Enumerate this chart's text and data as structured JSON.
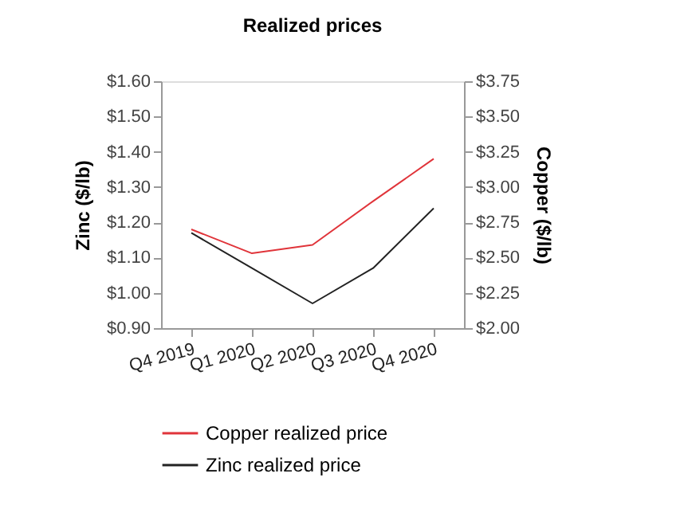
{
  "chart_data": {
    "type": "line",
    "title": "Realized prices",
    "ylabel": "Zinc ($/lb)",
    "y2label": "Copper ($/lb)",
    "categories": [
      "Q4 2019",
      "Q1 2020",
      "Q2 2020",
      "Q3 2020",
      "Q4 2020"
    ],
    "series": [
      {
        "name": "Copper realized price",
        "color": "#e0343a",
        "axis": "y2",
        "values": [
          2.7,
          2.53,
          2.59,
          2.9,
          3.2
        ]
      },
      {
        "name": "Zinc realized price",
        "color": "#222222",
        "values": [
          1.17,
          1.07,
          0.97,
          1.07,
          1.24
        ]
      }
    ],
    "ylim": [
      0.9,
      1.6
    ],
    "yticks": [
      {
        "value": 0.9,
        "label": "$0.90"
      },
      {
        "value": 1.0,
        "label": "$1.00"
      },
      {
        "value": 1.1,
        "label": "$1.10"
      },
      {
        "value": 1.2,
        "label": "$1.20"
      },
      {
        "value": 1.3,
        "label": "$1.30"
      },
      {
        "value": 1.4,
        "label": "$1.40"
      },
      {
        "value": 1.5,
        "label": "$1.50"
      },
      {
        "value": 1.6,
        "label": "$1.60"
      }
    ],
    "y2lim": [
      2.0,
      3.75
    ],
    "y2ticks": [
      {
        "value": 2.0,
        "label": "$2.00"
      },
      {
        "value": 2.25,
        "label": "$2.25"
      },
      {
        "value": 2.5,
        "label": "$2.50"
      },
      {
        "value": 2.75,
        "label": "$2.75"
      },
      {
        "value": 3.0,
        "label": "$3.00"
      },
      {
        "value": 3.25,
        "label": "$3.25"
      },
      {
        "value": 3.5,
        "label": "$3.50"
      },
      {
        "value": 3.75,
        "label": "$3.75"
      }
    ],
    "grid": false,
    "legend": "bottom",
    "marker": "none",
    "line_style": "solid"
  }
}
